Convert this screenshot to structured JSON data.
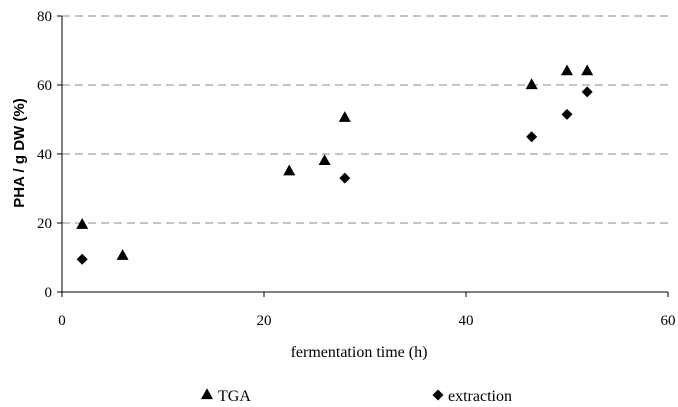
{
  "chart_data": {
    "type": "scatter",
    "title": "",
    "xlabel": "fermentation time  (h)",
    "ylabel": "PHA / g DW (%)",
    "xlim": [
      0,
      60
    ],
    "ylim": [
      0,
      80
    ],
    "xticks": [
      0,
      20,
      40,
      60
    ],
    "yticks": [
      0,
      20,
      40,
      60,
      80
    ],
    "grid": "horizontal dashed",
    "legend_position": "bottom",
    "series": [
      {
        "name": "TGA",
        "marker": "triangle",
        "color": "#000000",
        "points": [
          {
            "x": 2,
            "y": 19.5
          },
          {
            "x": 6,
            "y": 10.5
          },
          {
            "x": 22.5,
            "y": 35
          },
          {
            "x": 26,
            "y": 38
          },
          {
            "x": 28,
            "y": 50.5
          },
          {
            "x": 46.5,
            "y": 60
          },
          {
            "x": 50,
            "y": 64
          },
          {
            "x": 52,
            "y": 64
          }
        ]
      },
      {
        "name": "extraction",
        "marker": "diamond",
        "color": "#000000",
        "points": [
          {
            "x": 2,
            "y": 9.5
          },
          {
            "x": 28,
            "y": 33
          },
          {
            "x": 46.5,
            "y": 45
          },
          {
            "x": 50,
            "y": 51.5
          },
          {
            "x": 52,
            "y": 58
          }
        ]
      }
    ]
  }
}
